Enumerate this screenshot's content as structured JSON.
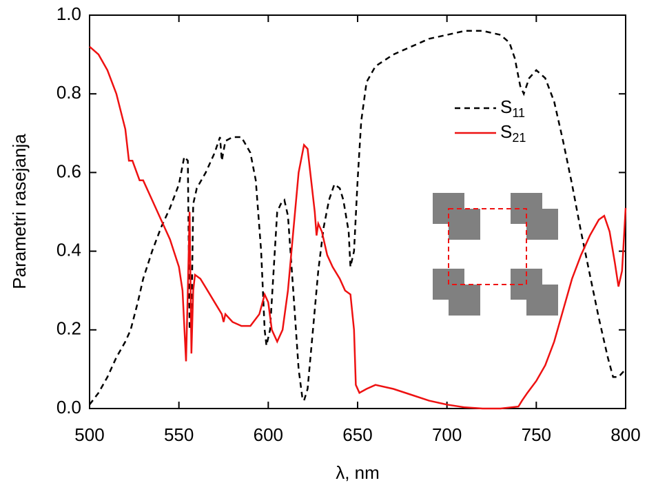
{
  "chart_data": {
    "type": "line",
    "xlabel": "λ, nm",
    "ylabel": "Parametri rasejanja",
    "xlim": [
      500,
      800
    ],
    "xticks": [
      500,
      550,
      600,
      650,
      700,
      750,
      800
    ],
    "ylim": [
      0,
      1
    ],
    "yticks": [
      {
        "value": 0,
        "label": "0.0"
      },
      {
        "value": 0.2,
        "label": "0.2"
      },
      {
        "value": 0.4,
        "label": "0.4"
      },
      {
        "value": 0.6,
        "label": "0.6"
      },
      {
        "value": 0.8,
        "label": "0.8"
      },
      {
        "value": 1,
        "label": "1.0"
      }
    ],
    "series": [
      {
        "name": "S11",
        "color": "#000000",
        "dash": true,
        "x": [
          500,
          505,
          510,
          515,
          520,
          523,
          527,
          530,
          535,
          540,
          545,
          550,
          553,
          555,
          556,
          557,
          558,
          560,
          565,
          570,
          573,
          574,
          576,
          580,
          585,
          590,
          593,
          596,
          598,
          599,
          601,
          603,
          605,
          607,
          609,
          611,
          614,
          617,
          619,
          620,
          622,
          625,
          628,
          631,
          634,
          637,
          640,
          642,
          645,
          646,
          648,
          650,
          652,
          655,
          660,
          670,
          680,
          690,
          700,
          710,
          720,
          730,
          735,
          738,
          741,
          743,
          746,
          750,
          755,
          760,
          765,
          770,
          775,
          780,
          785,
          790,
          793,
          796,
          800
        ],
        "values": [
          0.01,
          0.04,
          0.08,
          0.13,
          0.17,
          0.2,
          0.27,
          0.33,
          0.4,
          0.46,
          0.51,
          0.57,
          0.64,
          0.63,
          0.2,
          0.22,
          0.52,
          0.56,
          0.6,
          0.65,
          0.69,
          0.63,
          0.68,
          0.69,
          0.69,
          0.65,
          0.58,
          0.4,
          0.2,
          0.16,
          0.2,
          0.35,
          0.5,
          0.52,
          0.53,
          0.49,
          0.3,
          0.1,
          0.03,
          0.02,
          0.05,
          0.2,
          0.35,
          0.46,
          0.53,
          0.57,
          0.56,
          0.53,
          0.45,
          0.36,
          0.4,
          0.58,
          0.73,
          0.83,
          0.87,
          0.9,
          0.92,
          0.94,
          0.95,
          0.96,
          0.96,
          0.95,
          0.93,
          0.89,
          0.82,
          0.8,
          0.84,
          0.86,
          0.84,
          0.78,
          0.68,
          0.57,
          0.45,
          0.34,
          0.23,
          0.13,
          0.08,
          0.08,
          0.1
        ]
      },
      {
        "name": "S21",
        "color": "#ee1111",
        "dash": false,
        "x": [
          500,
          505,
          510,
          515,
          520,
          522,
          524,
          528,
          530,
          535,
          540,
          545,
          550,
          552,
          554,
          555,
          556,
          557,
          558,
          559,
          562,
          566,
          570,
          574,
          575,
          576,
          580,
          585,
          590,
          595,
          598,
          600,
          602,
          605,
          608,
          611,
          614,
          617,
          620,
          622,
          624,
          626,
          627,
          628,
          630,
          633,
          636,
          640,
          643,
          646,
          648,
          649,
          651,
          655,
          660,
          670,
          680,
          690,
          700,
          710,
          720,
          730,
          740,
          742,
          745,
          750,
          755,
          760,
          765,
          770,
          775,
          780,
          785,
          788,
          791,
          794,
          796,
          798,
          800
        ],
        "values": [
          0.92,
          0.9,
          0.86,
          0.8,
          0.71,
          0.63,
          0.63,
          0.58,
          0.58,
          0.53,
          0.48,
          0.43,
          0.36,
          0.3,
          0.12,
          0.3,
          0.5,
          0.14,
          0.3,
          0.34,
          0.33,
          0.3,
          0.27,
          0.24,
          0.22,
          0.24,
          0.22,
          0.21,
          0.21,
          0.24,
          0.29,
          0.27,
          0.2,
          0.17,
          0.2,
          0.3,
          0.45,
          0.6,
          0.67,
          0.66,
          0.58,
          0.5,
          0.44,
          0.47,
          0.45,
          0.39,
          0.36,
          0.33,
          0.3,
          0.29,
          0.2,
          0.06,
          0.04,
          0.05,
          0.06,
          0.05,
          0.035,
          0.02,
          0.01,
          0.003,
          0,
          0,
          0.005,
          0.02,
          0.04,
          0.07,
          0.11,
          0.17,
          0.25,
          0.33,
          0.39,
          0.44,
          0.48,
          0.49,
          0.45,
          0.37,
          0.31,
          0.35,
          0.51
        ]
      }
    ]
  }
}
